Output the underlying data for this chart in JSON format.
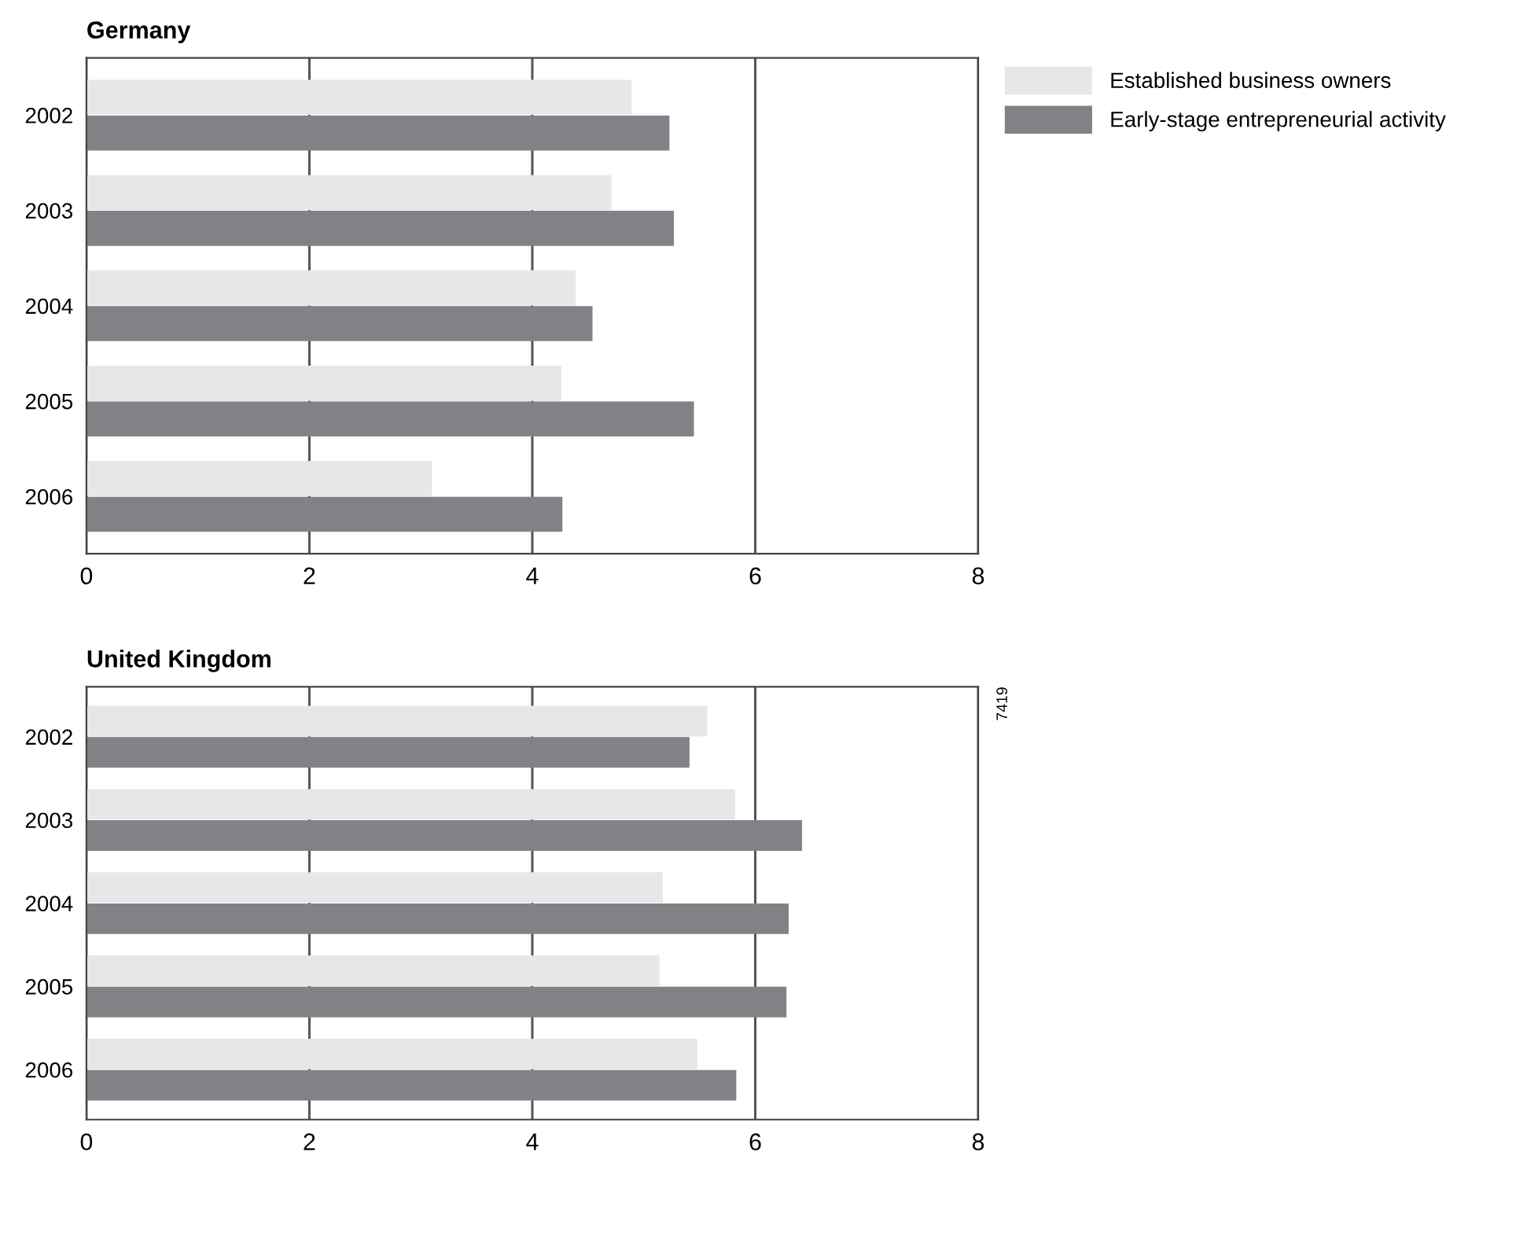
{
  "chart_data": [
    {
      "type": "bar",
      "title": "Germany",
      "orientation": "horizontal",
      "categories": [
        "2002",
        "2003",
        "2004",
        "2005",
        "2006"
      ],
      "series": [
        {
          "name": "Established business owners",
          "color": "#e6e7e8",
          "values": [
            4.89,
            4.71,
            4.39,
            4.26,
            3.1
          ]
        },
        {
          "name": "Early-stage entrepreneurial activity",
          "color": "#808285",
          "values": [
            5.23,
            5.27,
            4.54,
            5.45,
            4.27
          ]
        }
      ],
      "xlim": [
        0,
        8
      ],
      "xticks": [
        0,
        2,
        4,
        6,
        8
      ],
      "grid": "x",
      "legend": "top right"
    },
    {
      "type": "bar",
      "title": "United Kingdom",
      "orientation": "horizontal",
      "categories": [
        "2002",
        "2003",
        "2004",
        "2005",
        "2006"
      ],
      "series": [
        {
          "color": "#e6e7e8",
          "values": [
            5.57,
            5.82,
            5.17,
            5.14,
            5.48
          ]
        },
        {
          "color": "#808285",
          "values": [
            5.41,
            6.42,
            6.3,
            6.28,
            5.83
          ]
        }
      ],
      "xlim": [
        0,
        8
      ],
      "xticks": [
        0,
        2,
        4,
        6,
        8
      ],
      "grid": "x",
      "legend": false,
      "annotations": [
        "7419"
      ]
    }
  ]
}
